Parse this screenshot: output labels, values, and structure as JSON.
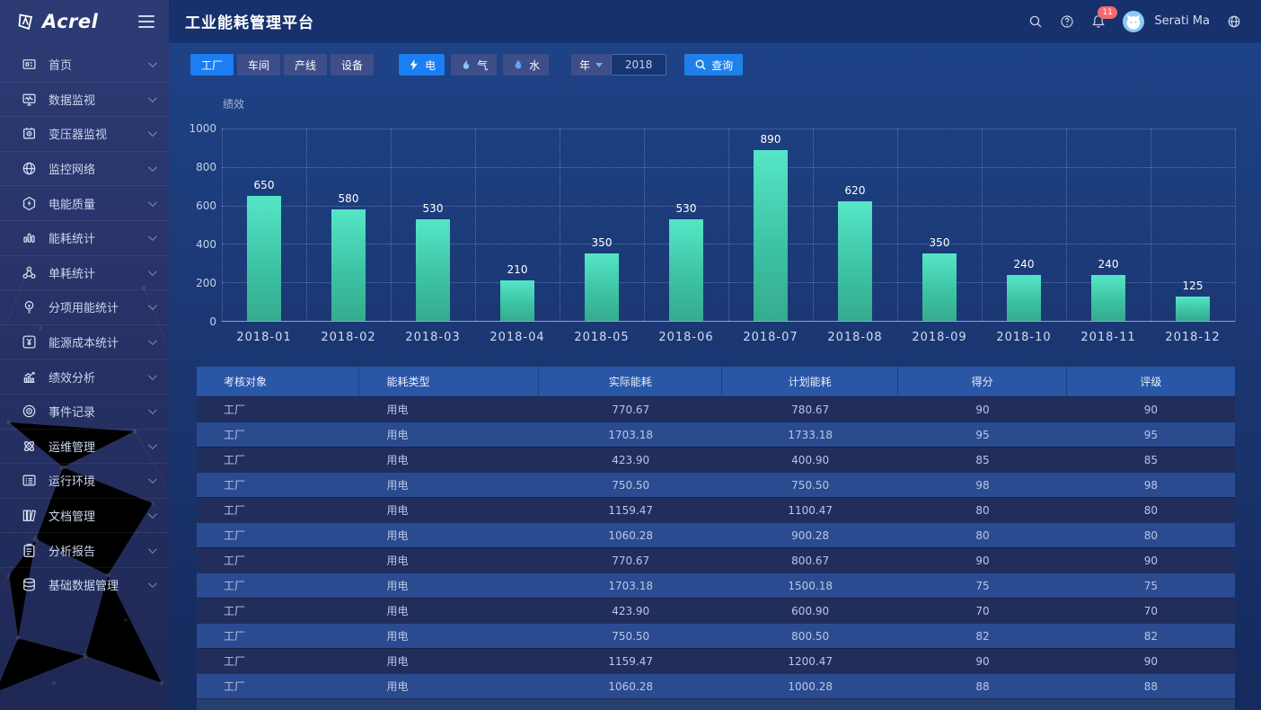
{
  "brand": {
    "logo_text": "Acrel"
  },
  "header": {
    "title": "工业能耗管理平台",
    "user_name": "Serati Ma",
    "notification_count": "11",
    "icons": [
      "search-icon",
      "help-icon",
      "bell-icon",
      "avatar",
      "globe-icon"
    ]
  },
  "sidebar": {
    "items": [
      {
        "id": "home",
        "icon": "dashboard-icon",
        "label": "首页"
      },
      {
        "id": "data-monitor",
        "icon": "data-monitor-icon",
        "label": "数据监视"
      },
      {
        "id": "transformer",
        "icon": "transformer-icon",
        "label": "变压器监视"
      },
      {
        "id": "network",
        "icon": "network-icon",
        "label": "监控网络"
      },
      {
        "id": "power-quality",
        "icon": "power-quality-icon",
        "label": "电能质量"
      },
      {
        "id": "energy-stats",
        "icon": "energy-stats-icon",
        "label": "能耗统计"
      },
      {
        "id": "unit-consumption",
        "icon": "unit-consumption-icon",
        "label": "单耗统计"
      },
      {
        "id": "subentry-energy",
        "icon": "subentry-energy-icon",
        "label": "分项用能统计"
      },
      {
        "id": "energy-cost",
        "icon": "energy-cost-icon",
        "label": "能源成本统计"
      },
      {
        "id": "performance",
        "icon": "performance-icon",
        "label": "绩效分析"
      },
      {
        "id": "event-log",
        "icon": "event-log-icon",
        "label": "事件记录"
      },
      {
        "id": "operations",
        "icon": "operations-icon",
        "label": "运维管理"
      },
      {
        "id": "environment",
        "icon": "environment-icon",
        "label": "运行环境"
      },
      {
        "id": "documents",
        "icon": "document-icon",
        "label": "文档管理"
      },
      {
        "id": "reports",
        "icon": "report-icon",
        "label": "分析报告"
      },
      {
        "id": "base-data",
        "icon": "base-data-icon",
        "label": "基础数据管理"
      }
    ]
  },
  "filters": {
    "scope_tabs": [
      {
        "id": "factory",
        "label": "工厂",
        "active": true
      },
      {
        "id": "workshop",
        "label": "车间",
        "active": false
      },
      {
        "id": "line",
        "label": "产线",
        "active": false
      },
      {
        "id": "device",
        "label": "设备",
        "active": false
      }
    ],
    "energy_tabs": [
      {
        "id": "electricity",
        "label": "电",
        "icon": "bolt-icon",
        "icon_color": "#ffffff",
        "active": true
      },
      {
        "id": "gas",
        "label": "气",
        "icon": "flame-icon",
        "icon_color": "#8fc6f9",
        "active": false
      },
      {
        "id": "water",
        "label": "水",
        "icon": "drop-icon",
        "icon_color": "#57a9f2",
        "active": false
      }
    ],
    "year_label": "年",
    "year_value": "2018",
    "query_label": "查询"
  },
  "chart_data": {
    "type": "bar",
    "title": "绩效",
    "categories": [
      "2018-01",
      "2018-02",
      "2018-03",
      "2018-04",
      "2018-05",
      "2018-06",
      "2018-07",
      "2018-08",
      "2018-09",
      "2018-10",
      "2018-11",
      "2018-12"
    ],
    "values": [
      650,
      580,
      530,
      210,
      350,
      530,
      890,
      620,
      350,
      240,
      240,
      125
    ],
    "ylim": [
      0,
      1000
    ],
    "yticks": [
      0,
      200,
      400,
      600,
      800,
      1000
    ],
    "grid": true,
    "bar_color_top": "#55e6c6",
    "bar_color_bottom": "#35ab8e"
  },
  "table": {
    "headers": [
      "考核对象",
      "能耗类型",
      "实际能耗",
      "计划能耗",
      "得分",
      "评级"
    ],
    "rows": [
      [
        "工厂",
        "用电",
        "770.67",
        "780.67",
        "90",
        "90"
      ],
      [
        "工厂",
        "用电",
        "1703.18",
        "1733.18",
        "95",
        "95"
      ],
      [
        "工厂",
        "用电",
        "423.90",
        "400.90",
        "85",
        "85"
      ],
      [
        "工厂",
        "用电",
        "750.50",
        "750.50",
        "98",
        "98"
      ],
      [
        "工厂",
        "用电",
        "1159.47",
        "1100.47",
        "80",
        "80"
      ],
      [
        "工厂",
        "用电",
        "1060.28",
        "900.28",
        "80",
        "80"
      ],
      [
        "工厂",
        "用电",
        "770.67",
        "800.67",
        "90",
        "90"
      ],
      [
        "工厂",
        "用电",
        "1703.18",
        "1500.18",
        "75",
        "75"
      ],
      [
        "工厂",
        "用电",
        "423.90",
        "600.90",
        "70",
        "70"
      ],
      [
        "工厂",
        "用电",
        "750.50",
        "800.50",
        "82",
        "82"
      ],
      [
        "工厂",
        "用电",
        "1159.47",
        "1200.47",
        "90",
        "90"
      ],
      [
        "工厂",
        "用电",
        "1060.28",
        "1000.28",
        "88",
        "88"
      ]
    ]
  },
  "colors": {
    "accent_blue": "#1b7ef2",
    "badge_red": "#f56a6e",
    "header_bg": "#16316b",
    "sidebar_bg": "#273267",
    "table_header_bg": "#2a56a6",
    "row_odd": "#212e5c",
    "row_even": "#2b4b90"
  }
}
